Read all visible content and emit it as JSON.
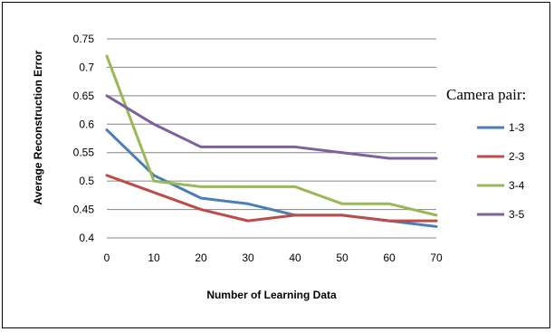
{
  "chart_data": {
    "type": "line",
    "title": "",
    "xlabel": "Number of Learning Data",
    "ylabel": "Average Reconstruction Error",
    "x": [
      0,
      10,
      20,
      30,
      40,
      50,
      60,
      70
    ],
    "xticks": [
      "0",
      "10",
      "20",
      "30",
      "40",
      "50",
      "60",
      "70"
    ],
    "yticks": [
      "0.4",
      "0.45",
      "0.5",
      "0.55",
      "0.6",
      "0.65",
      "0.7",
      "0.75"
    ],
    "xlim": [
      0,
      70
    ],
    "ylim": [
      0.4,
      0.75
    ],
    "grid": "horizontal",
    "legend_title": "Camera pair:",
    "legend_placement": "right",
    "series": [
      {
        "name": "1-3",
        "color": "#4a7ebb",
        "values": [
          0.59,
          0.51,
          0.47,
          0.46,
          0.44,
          0.44,
          0.43,
          0.42
        ]
      },
      {
        "name": "2-3",
        "color": "#be4b48",
        "values": [
          0.51,
          0.48,
          0.45,
          0.43,
          0.44,
          0.44,
          0.43,
          0.43
        ]
      },
      {
        "name": "3-4",
        "color": "#98b954",
        "values": [
          0.72,
          0.5,
          0.49,
          0.49,
          0.49,
          0.46,
          0.46,
          0.44
        ]
      },
      {
        "name": "3-5",
        "color": "#7d60a0",
        "values": [
          0.65,
          0.6,
          0.56,
          0.56,
          0.56,
          0.55,
          0.54,
          0.54
        ]
      }
    ]
  }
}
